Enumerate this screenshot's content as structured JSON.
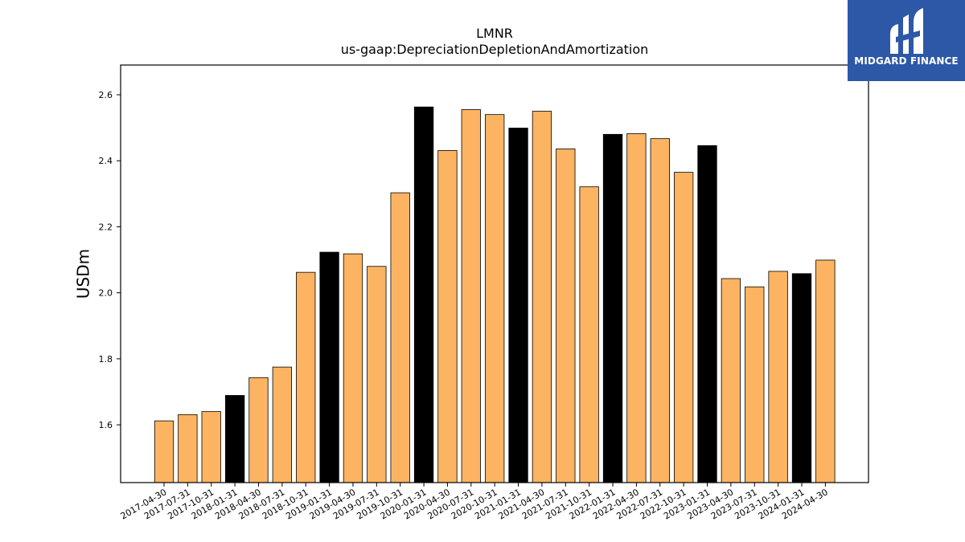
{
  "chart_data": {
    "type": "bar",
    "title": "LMNR",
    "subtitle": "us-gaap:DepreciationDepletionAndAmortization",
    "xlabel": "",
    "ylabel": "USDm",
    "ylim": [
      1.425,
      2.69
    ],
    "yticks": [
      1.6,
      1.8,
      2.0,
      2.2,
      2.4,
      2.6
    ],
    "grid": false,
    "categories": [
      "2017-04-30",
      "2017-07-31",
      "2017-10-31",
      "2018-01-31",
      "2018-04-30",
      "2018-07-31",
      "2018-10-31",
      "2019-01-31",
      "2019-04-30",
      "2019-07-31",
      "2019-10-31",
      "2020-01-31",
      "2020-04-30",
      "2020-07-31",
      "2020-10-31",
      "2021-01-31",
      "2021-04-30",
      "2021-07-31",
      "2021-10-31",
      "2022-01-31",
      "2022-04-30",
      "2022-07-31",
      "2022-10-31",
      "2023-01-31",
      "2023-04-30",
      "2023-07-31",
      "2023-10-31",
      "2024-01-31",
      "2024-04-30"
    ],
    "values": [
      1.612,
      1.631,
      1.64,
      1.689,
      1.743,
      1.775,
      2.062,
      2.123,
      2.118,
      2.08,
      2.303,
      2.563,
      2.431,
      2.555,
      2.54,
      2.499,
      2.55,
      2.436,
      2.321,
      2.48,
      2.482,
      2.467,
      2.365,
      2.446,
      2.043,
      2.018,
      2.065,
      2.058,
      2.099
    ],
    "highlight": [
      false,
      false,
      false,
      true,
      false,
      false,
      false,
      true,
      false,
      false,
      false,
      true,
      false,
      false,
      false,
      true,
      false,
      false,
      false,
      true,
      false,
      false,
      false,
      true,
      false,
      false,
      false,
      true,
      false
    ],
    "colors": {
      "bar": "#fdb462",
      "highlight": "#000000",
      "edge": "#000000",
      "axis": "#000000"
    }
  },
  "logo": {
    "text": "MIDGARD FINANCE",
    "background": "#2d58a8"
  }
}
